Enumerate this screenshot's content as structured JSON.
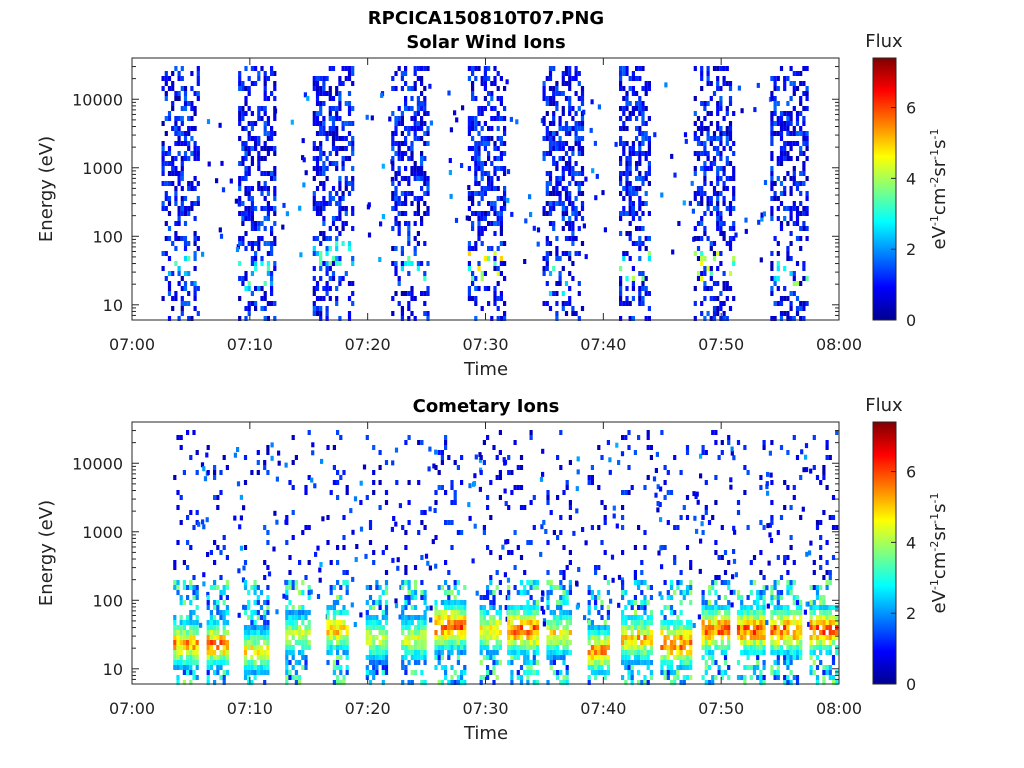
{
  "figure_title": "RPCICA150810T07.PNG",
  "chart_data": [
    {
      "type": "heatmap",
      "title": "Solar Wind Ions",
      "xlabel": "Time",
      "ylabel": "Energy (eV)",
      "x_ticks": [
        "07:00",
        "07:10",
        "07:20",
        "07:30",
        "07:40",
        "07:50",
        "08:00"
      ],
      "x_range": [
        "07:00",
        "08:00"
      ],
      "y_ticks": [
        "10",
        "100",
        "1000",
        "10000"
      ],
      "y_scale": "log",
      "y_range": [
        6,
        40000
      ],
      "colorbar": {
        "title": "Flux",
        "unit": "eV-1cm-2sr-1s-1",
        "ticks": [
          "0",
          "2",
          "4",
          "6"
        ],
        "range": [
          0,
          7.4
        ],
        "colormap": "jet"
      },
      "bursts": [
        {
          "start": "07:02:30",
          "end": "07:05:30",
          "bright_energy_eV": 35,
          "peak_flux": 3.5
        },
        {
          "start": "07:09:00",
          "end": "07:12:00",
          "bright_energy_eV": 30,
          "peak_flux": 3.5
        },
        {
          "start": "07:15:20",
          "end": "07:18:40",
          "bright_energy_eV": 60,
          "peak_flux": 3.8
        },
        {
          "start": "07:22:00",
          "end": "07:25:00",
          "bright_energy_eV": 35,
          "peak_flux": 4.0
        },
        {
          "start": "07:28:30",
          "end": "07:31:40",
          "bright_energy_eV": 40,
          "peak_flux": 5.0
        },
        {
          "start": "07:34:50",
          "end": "07:38:10",
          "bright_energy_eV": 25,
          "peak_flux": 3.5
        },
        {
          "start": "07:41:20",
          "end": "07:44:00",
          "bright_energy_eV": 40,
          "peak_flux": 4.5
        },
        {
          "start": "07:47:40",
          "end": "07:51:00",
          "bright_energy_eV": 40,
          "peak_flux": 5.0
        },
        {
          "start": "07:54:10",
          "end": "07:57:20",
          "bright_energy_eV": 30,
          "peak_flux": 4.5
        }
      ]
    },
    {
      "type": "heatmap",
      "title": "Cometary Ions",
      "xlabel": "Time",
      "ylabel": "Energy (eV)",
      "x_ticks": [
        "07:00",
        "07:10",
        "07:20",
        "07:30",
        "07:40",
        "07:50",
        "08:00"
      ],
      "x_range": [
        "07:00",
        "08:00"
      ],
      "y_ticks": [
        "10",
        "100",
        "1000",
        "10000"
      ],
      "y_scale": "log",
      "y_range": [
        6,
        40000
      ],
      "colorbar": {
        "title": "Flux",
        "unit": "eV-1cm-2sr-1s-1",
        "ticks": [
          "0",
          "2",
          "4",
          "6"
        ],
        "range": [
          0,
          7.4
        ],
        "colormap": "jet"
      },
      "bursts": [
        {
          "start": "07:03:30",
          "end": "07:05:30",
          "peak_energy_eV": 25,
          "peak_flux": 6.2
        },
        {
          "start": "07:06:20",
          "end": "07:08:10",
          "peak_energy_eV": 25,
          "peak_flux": 6.5
        },
        {
          "start": "07:09:30",
          "end": "07:11:30",
          "peak_energy_eV": 20,
          "peak_flux": 5.5
        },
        {
          "start": "07:13:00",
          "end": "07:15:00",
          "peak_energy_eV": 35,
          "peak_flux": 5.0
        },
        {
          "start": "07:16:30",
          "end": "07:18:20",
          "peak_energy_eV": 40,
          "peak_flux": 5.8
        },
        {
          "start": "07:19:50",
          "end": "07:21:40",
          "peak_energy_eV": 30,
          "peak_flux": 5.0
        },
        {
          "start": "07:22:50",
          "end": "07:24:50",
          "peak_energy_eV": 30,
          "peak_flux": 5.2
        },
        {
          "start": "07:25:40",
          "end": "07:28:20",
          "peak_energy_eV": 45,
          "peak_flux": 6.8
        },
        {
          "start": "07:29:30",
          "end": "07:31:20",
          "peak_energy_eV": 40,
          "peak_flux": 5.8
        },
        {
          "start": "07:31:50",
          "end": "07:34:30",
          "peak_energy_eV": 40,
          "peak_flux": 6.8
        },
        {
          "start": "07:35:10",
          "end": "07:37:20",
          "peak_energy_eV": 35,
          "peak_flux": 5.5
        },
        {
          "start": "07:38:40",
          "end": "07:40:20",
          "peak_energy_eV": 20,
          "peak_flux": 6.3
        },
        {
          "start": "07:41:30",
          "end": "07:44:10",
          "peak_energy_eV": 30,
          "peak_flux": 6.0
        },
        {
          "start": "07:44:50",
          "end": "07:47:30",
          "peak_energy_eV": 25,
          "peak_flux": 6.8
        },
        {
          "start": "07:48:20",
          "end": "07:50:40",
          "peak_energy_eV": 40,
          "peak_flux": 6.8
        },
        {
          "start": "07:51:20",
          "end": "07:53:40",
          "peak_energy_eV": 40,
          "peak_flux": 6.8
        },
        {
          "start": "07:54:10",
          "end": "07:56:40",
          "peak_energy_eV": 40,
          "peak_flux": 6.8
        },
        {
          "start": "07:57:30",
          "end": "07:59:50",
          "peak_energy_eV": 40,
          "peak_flux": 6.8
        }
      ]
    }
  ]
}
